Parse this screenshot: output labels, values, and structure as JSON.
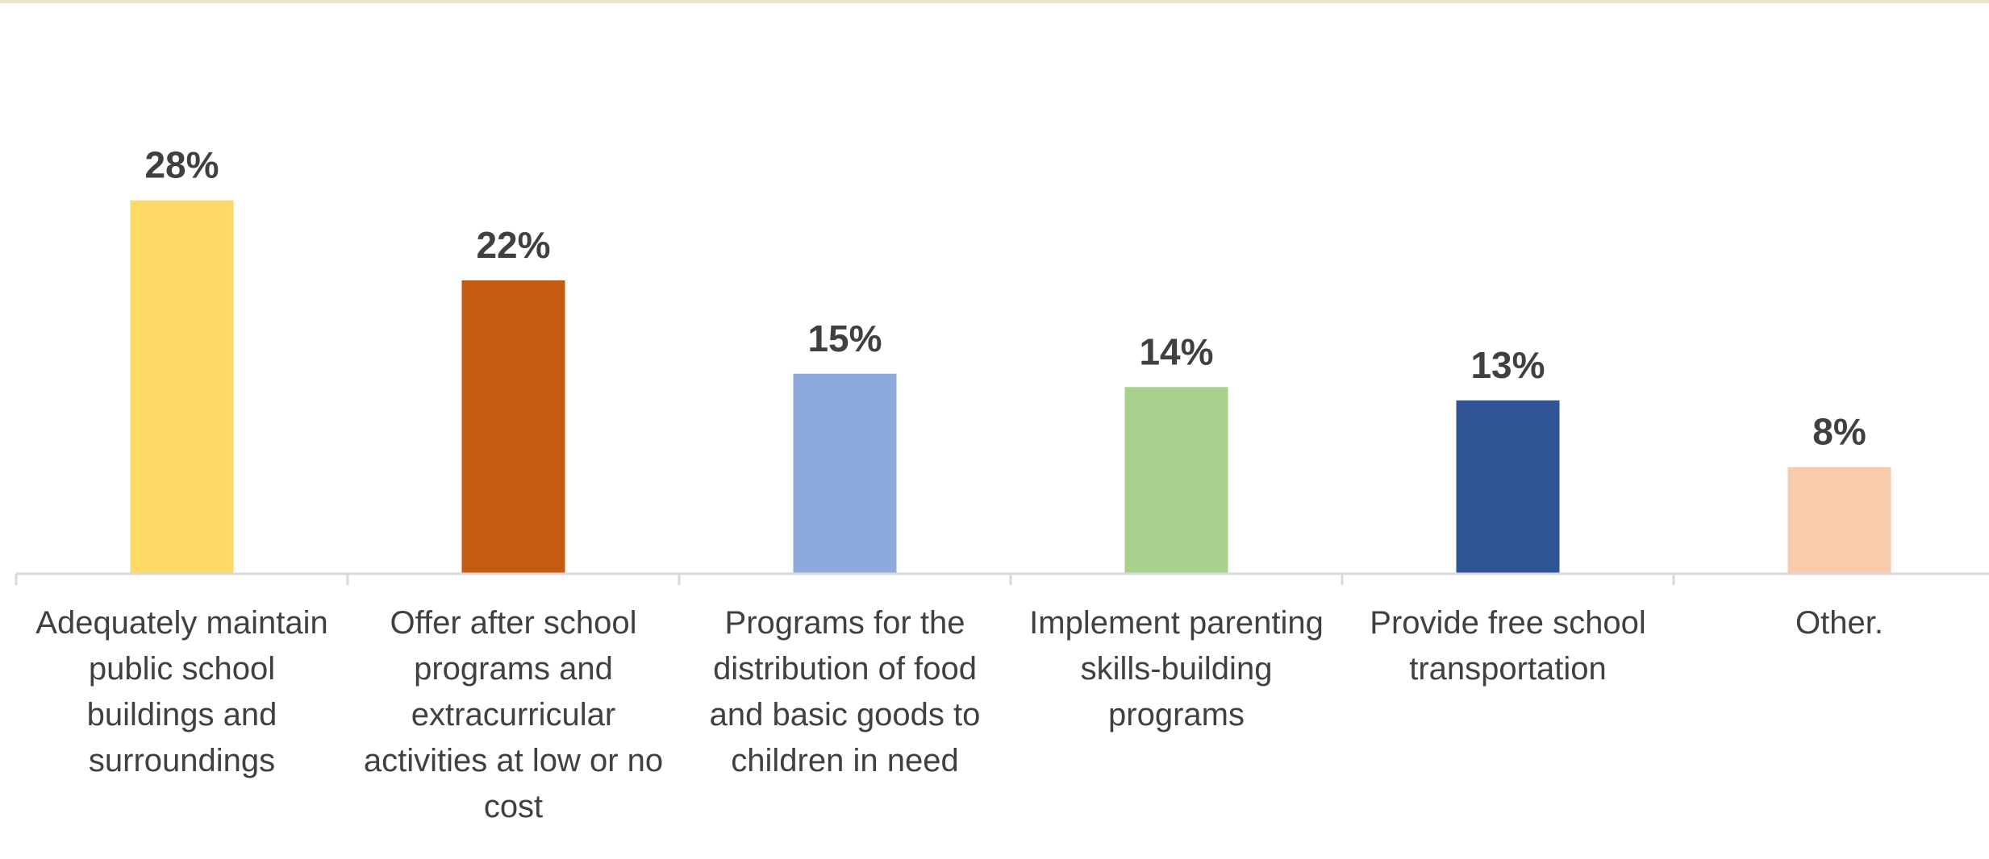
{
  "chart_data": {
    "type": "bar",
    "categories": [
      "Adequately maintain public school buildings and surroundings",
      "Offer after school programs and extracurricular activities at low or no cost",
      "Programs for the distribution of food and basic goods to children in need",
      "Implement parenting skills-building programs",
      "Provide free school transportation",
      "Other."
    ],
    "category_lines": [
      [
        "Adequately maintain",
        "public school",
        "buildings and",
        "surroundings"
      ],
      [
        "Offer after school",
        "programs and",
        "extracurricular",
        "activities at low or no",
        "cost"
      ],
      [
        "Programs for the",
        "distribution of food",
        "and basic goods to",
        "children in need"
      ],
      [
        "Implement parenting",
        "skills-building",
        "programs"
      ],
      [
        "Provide free school",
        "transportation"
      ],
      [
        "Other."
      ]
    ],
    "values": [
      28,
      22,
      15,
      14,
      13,
      8
    ],
    "value_labels": [
      "28%",
      "22%",
      "15%",
      "14%",
      "13%",
      "8%"
    ],
    "colors": [
      "#FFD966",
      "#C55A11",
      "#8EA9DB",
      "#A9D18E",
      "#2F5597",
      "#F8CBAD"
    ],
    "title": "",
    "xlabel": "",
    "ylabel": "",
    "ylim": [
      0,
      30
    ],
    "grid": false,
    "legend": "none"
  }
}
